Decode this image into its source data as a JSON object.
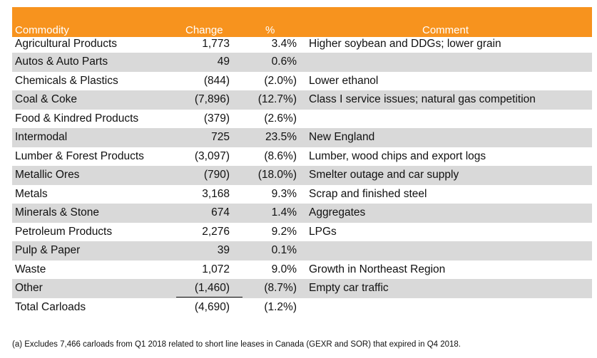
{
  "headers": {
    "commodity": "Commodity",
    "change": "Change",
    "pct": "%",
    "comment": "Comment"
  },
  "colors": {
    "header_bg": "#f7931e",
    "header_text": "#ffffff",
    "row_shade": "#d9d9d9"
  },
  "rows": [
    {
      "commodity": "Agricultural Products",
      "change": "1,773",
      "pct": "3.4%",
      "comment": "Higher soybean and DDGs; lower grain"
    },
    {
      "commodity": "Autos & Auto Parts",
      "change": "49",
      "pct": "0.6%",
      "comment": ""
    },
    {
      "commodity": "Chemicals & Plastics",
      "change": "(844)",
      "pct": "(2.0%)",
      "comment": "Lower ethanol"
    },
    {
      "commodity": "Coal & Coke",
      "change": "(7,896)",
      "pct": "(12.7%)",
      "comment": "Class I service issues; natural gas competition"
    },
    {
      "commodity": "Food & Kindred Products",
      "change": "(379)",
      "pct": "(2.6%)",
      "comment": ""
    },
    {
      "commodity": "Intermodal",
      "change": "725",
      "pct": "23.5%",
      "comment": "New England"
    },
    {
      "commodity": "Lumber & Forest Products",
      "change": "(3,097)",
      "pct": "(8.6%)",
      "comment": "Lumber, wood chips and export logs"
    },
    {
      "commodity": "Metallic Ores",
      "change": "(790)",
      "pct": "(18.0%)",
      "comment": "Smelter outage and car supply"
    },
    {
      "commodity": "Metals",
      "change": "3,168",
      "pct": "9.3%",
      "comment": "Scrap and finished steel"
    },
    {
      "commodity": "Minerals & Stone",
      "change": "674",
      "pct": "1.4%",
      "comment": "Aggregates"
    },
    {
      "commodity": "Petroleum Products",
      "change": "2,276",
      "pct": "9.2%",
      "comment": "LPGs"
    },
    {
      "commodity": "Pulp & Paper",
      "change": "39",
      "pct": "0.1%",
      "comment": ""
    },
    {
      "commodity": "Waste",
      "change": "1,072",
      "pct": "9.0%",
      "comment": "Growth in Northeast Region"
    },
    {
      "commodity": "Other",
      "change": "(1,460)",
      "pct": "(8.7%)",
      "comment": "Empty car traffic"
    }
  ],
  "total": {
    "commodity": "Total Carloads",
    "change": "(4,690)",
    "pct": "(1.2%)",
    "comment": ""
  },
  "footnote": "(a)  Excludes 7,466 carloads from Q1 2018 related to short line leases in Canada (GEXR and SOR) that expired in Q4 2018."
}
